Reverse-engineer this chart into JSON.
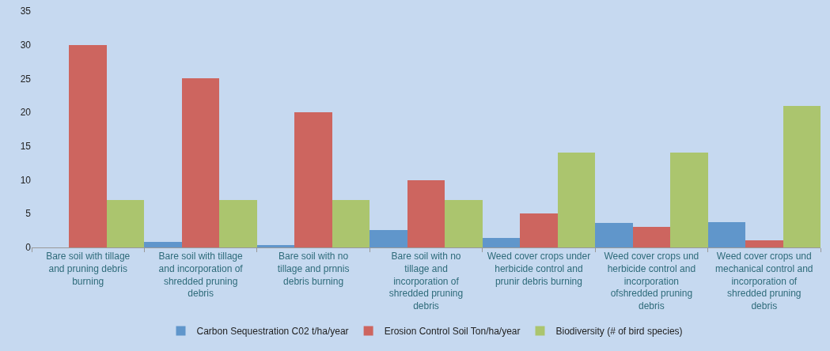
{
  "chart_data": {
    "type": "bar",
    "categories": [
      "Bare soil with tillage and pruning debris burning",
      "Bare soil with tillage and incorporation of shredded pruning debris",
      "Bare soil with no tillage and prnnis debris burning",
      "Bare soil with no tillage and incorporation of shredded pruning debris",
      "Weed cover crops under herbicide control and prunir debris burning",
      "Weed cover crops und herbicide control and incorporation ofshredded pruning debris",
      "Weed cover crops und mechanical control and incorporation of shredded pruning debris"
    ],
    "series": [
      {
        "name": "Carbon Sequestration C02 t/ha/year",
        "color": "#6096cb",
        "values": [
          0,
          0.8,
          0.4,
          2.6,
          1.4,
          3.6,
          3.8
        ]
      },
      {
        "name": "Erosion Control Soil Ton/ha/year",
        "color": "#cd655f",
        "values": [
          30,
          25,
          20,
          10,
          5,
          3,
          1
        ]
      },
      {
        "name": "Biodiversity (# of bird species)",
        "color": "#abc56e",
        "values": [
          7,
          7,
          7,
          7,
          14,
          14,
          21
        ]
      }
    ],
    "ylim": [
      0,
      35
    ],
    "yticks": [
      0,
      5,
      10,
      15,
      20,
      25,
      30,
      35
    ],
    "grid": false,
    "legend": "bottom"
  }
}
